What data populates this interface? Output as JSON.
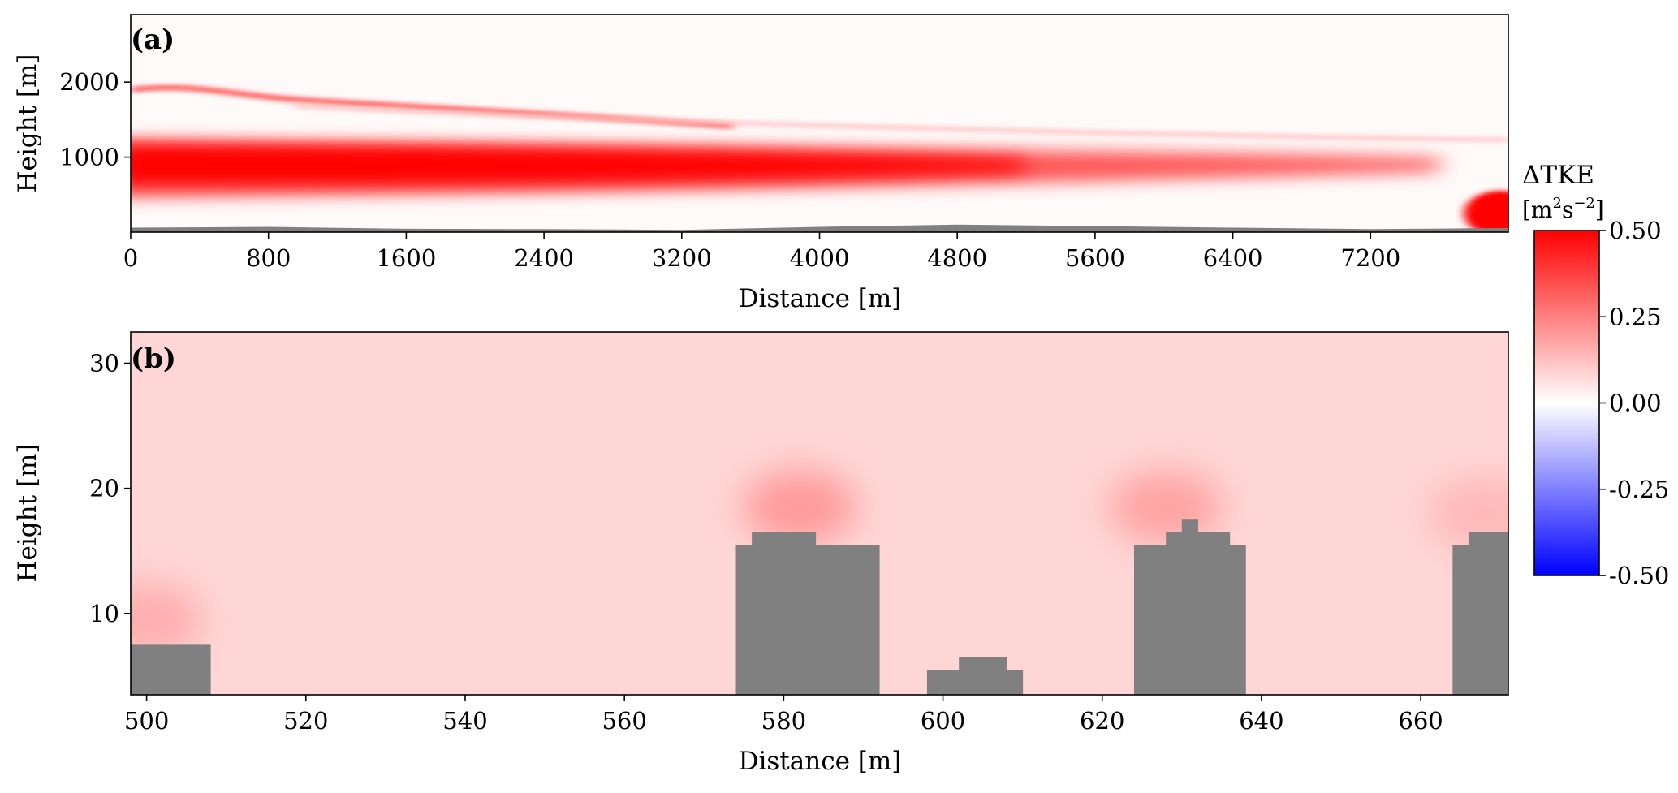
{
  "chart_data": [
    {
      "panel": "(a)",
      "type": "heatmap",
      "xlabel": "Distance [m]",
      "ylabel": "Height [m]",
      "xlim": [
        0,
        8000
      ],
      "ylim": [
        0,
        2900
      ],
      "xticks": [
        0,
        800,
        1600,
        2400,
        3200,
        4000,
        4800,
        5600,
        6400,
        7200
      ],
      "yticks": [
        1000,
        2000
      ],
      "features": [
        {
          "name": "low-level band",
          "x_start": 0,
          "x_end": 7600,
          "y_center": 900,
          "y_half_width": 330,
          "peak_value": 0.55
        },
        {
          "name": "upper band",
          "x_start": 0,
          "x_end": 3500,
          "y_center": 1900,
          "peak_value": 0.35
        },
        {
          "name": "right-edge surface maximum",
          "x_start": 7750,
          "x_end": 8000,
          "y_center": 250,
          "peak_value": 0.55
        }
      ],
      "buildings_profile": [
        [
          0,
          60
        ],
        [
          800,
          70
        ],
        [
          1600,
          45
        ],
        [
          2400,
          40
        ],
        [
          3200,
          30
        ],
        [
          4000,
          70
        ],
        [
          4800,
          100
        ],
        [
          5600,
          80
        ],
        [
          6400,
          60
        ],
        [
          7200,
          40
        ],
        [
          8000,
          55
        ]
      ]
    },
    {
      "panel": "(b)",
      "type": "heatmap",
      "xlabel": "Distance [m]",
      "ylabel": "Height [m]",
      "xlim": [
        498,
        671
      ],
      "ylim": [
        3.5,
        32.5
      ],
      "xticks": [
        500,
        520,
        540,
        560,
        580,
        600,
        620,
        640,
        660
      ],
      "yticks": [
        10,
        20,
        30
      ],
      "background_value": 0.08,
      "hotspots": [
        {
          "x": 582,
          "y": 18.5,
          "value": 0.2
        },
        {
          "x": 628,
          "y": 18.5,
          "value": 0.18
        },
        {
          "x": 500,
          "y": 9.5,
          "value": 0.16
        },
        {
          "x": 668,
          "y": 18,
          "value": 0.14
        }
      ],
      "buildings": [
        {
          "x0": 498,
          "x1": 508,
          "height": 7.5
        },
        {
          "x0": 574,
          "x1": 576,
          "height": 15.5
        },
        {
          "x0": 576,
          "x1": 584,
          "height": 16.5
        },
        {
          "x0": 584,
          "x1": 592,
          "height": 15.5
        },
        {
          "x0": 598,
          "x1": 602,
          "height": 5.5
        },
        {
          "x0": 602,
          "x1": 608,
          "height": 6.5
        },
        {
          "x0": 608,
          "x1": 610,
          "height": 5.5
        },
        {
          "x0": 624,
          "x1": 628,
          "height": 15.5
        },
        {
          "x0": 628,
          "x1": 630,
          "height": 16.5
        },
        {
          "x0": 630,
          "x1": 632,
          "height": 17.5
        },
        {
          "x0": 632,
          "x1": 636,
          "height": 16.5
        },
        {
          "x0": 636,
          "x1": 638,
          "height": 15.5
        },
        {
          "x0": 664,
          "x1": 666,
          "height": 15.5
        },
        {
          "x0": 666,
          "x1": 671,
          "height": 16.5
        }
      ]
    }
  ],
  "colorbar": {
    "title": "ΔTKE",
    "units_base": "[m",
    "units_sup1": "2",
    "units_mid": "s",
    "units_sup2": "−2",
    "units_end": "]",
    "range": [
      -0.5,
      0.5
    ],
    "ticks": [
      "0.50",
      "0.25",
      "0.00",
      "-0.25",
      "-0.50"
    ],
    "colormap": "bwr"
  },
  "colors": {
    "building": "#808080",
    "max": "#ff0000",
    "min": "#0000ff",
    "mid": "#ffffff"
  }
}
